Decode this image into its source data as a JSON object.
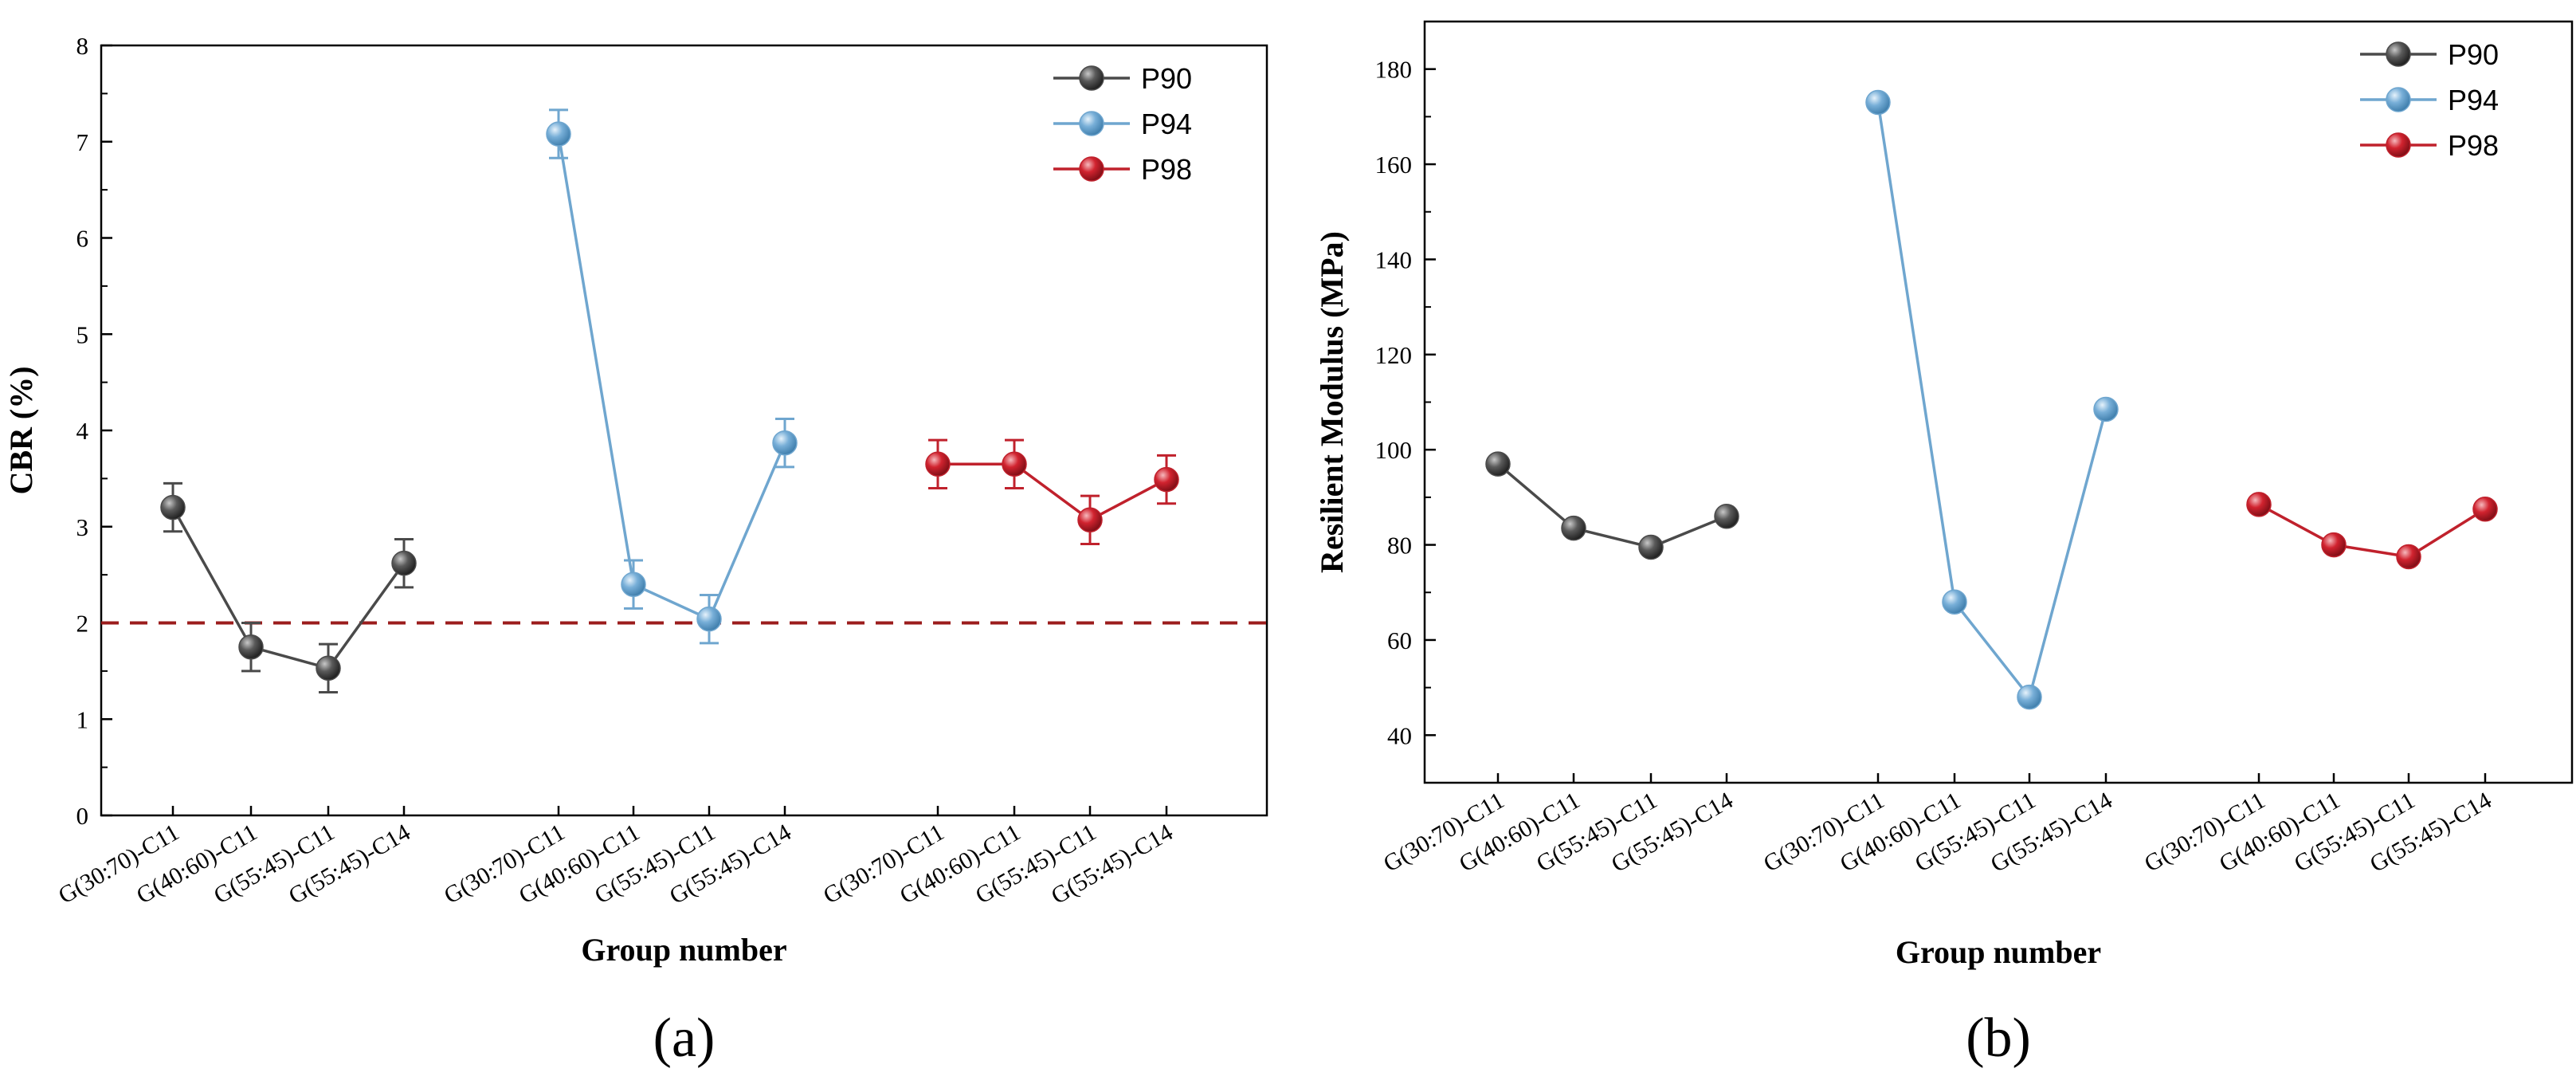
{
  "chart_data": [
    {
      "panel_label": "(a)",
      "type": "line",
      "title": "",
      "xlabel": "Group number",
      "ylabel": "CBR (%)",
      "ylim": [
        0,
        8
      ],
      "yticks": [
        "0",
        "1",
        "2",
        "3",
        "4",
        "5",
        "6",
        "7",
        "8"
      ],
      "grid": false,
      "legend_position": "top-right",
      "reference_line": {
        "y": 2,
        "style": "dashed",
        "color": "#9b1c1c"
      },
      "series": [
        {
          "name": "P90",
          "color": "#4a4a4a",
          "categories": [
            "G(30:70)-C11",
            "G(40:60)-C11",
            "G(55:45)-C11",
            "G(55:45)-C14"
          ],
          "values": [
            3.2,
            1.75,
            1.53,
            2.62
          ],
          "errors": [
            0.25,
            0.25,
            0.25,
            0.25
          ]
        },
        {
          "name": "P94",
          "color": "#6fa6cf",
          "categories": [
            "G(30:70)-C11",
            "G(40:60)-C11",
            "G(55:45)-C11",
            "G(55:45)-C14"
          ],
          "values": [
            7.08,
            2.4,
            2.04,
            3.87
          ],
          "errors": [
            0.25,
            0.25,
            0.25,
            0.25
          ]
        },
        {
          "name": "P98",
          "color": "#c0212c",
          "categories": [
            "G(30:70)-C11",
            "G(40:60)-C11",
            "G(55:45)-C11",
            "G(55:45)-C14"
          ],
          "values": [
            3.65,
            3.65,
            3.07,
            3.49
          ],
          "errors": [
            0.25,
            0.25,
            0.25,
            0.25
          ]
        }
      ]
    },
    {
      "panel_label": "(b)",
      "type": "line",
      "title": "",
      "xlabel": "Group number",
      "ylabel": "Resilient Modulus (MPa)",
      "ylim": [
        30,
        190
      ],
      "yticks": [
        "40",
        "60",
        "80",
        "100",
        "120",
        "140",
        "160",
        "180"
      ],
      "grid": false,
      "legend_position": "top-right",
      "series": [
        {
          "name": "P90",
          "color": "#4a4a4a",
          "categories": [
            "G(30:70)-C11",
            "G(40:60)-C11",
            "G(55:45)-C11",
            "G(55:45)-C14"
          ],
          "values": [
            97,
            83.5,
            79.5,
            86
          ]
        },
        {
          "name": "P94",
          "color": "#6fa6cf",
          "categories": [
            "G(30:70)-C11",
            "G(40:60)-C11",
            "G(55:45)-C11",
            "G(55:45)-C14"
          ],
          "values": [
            173,
            68,
            48,
            108.5
          ]
        },
        {
          "name": "P98",
          "color": "#c0212c",
          "categories": [
            "G(30:70)-C11",
            "G(40:60)-C11",
            "G(55:45)-C11",
            "G(55:45)-C14"
          ],
          "values": [
            88.5,
            80,
            77.5,
            87.5
          ]
        }
      ]
    }
  ]
}
